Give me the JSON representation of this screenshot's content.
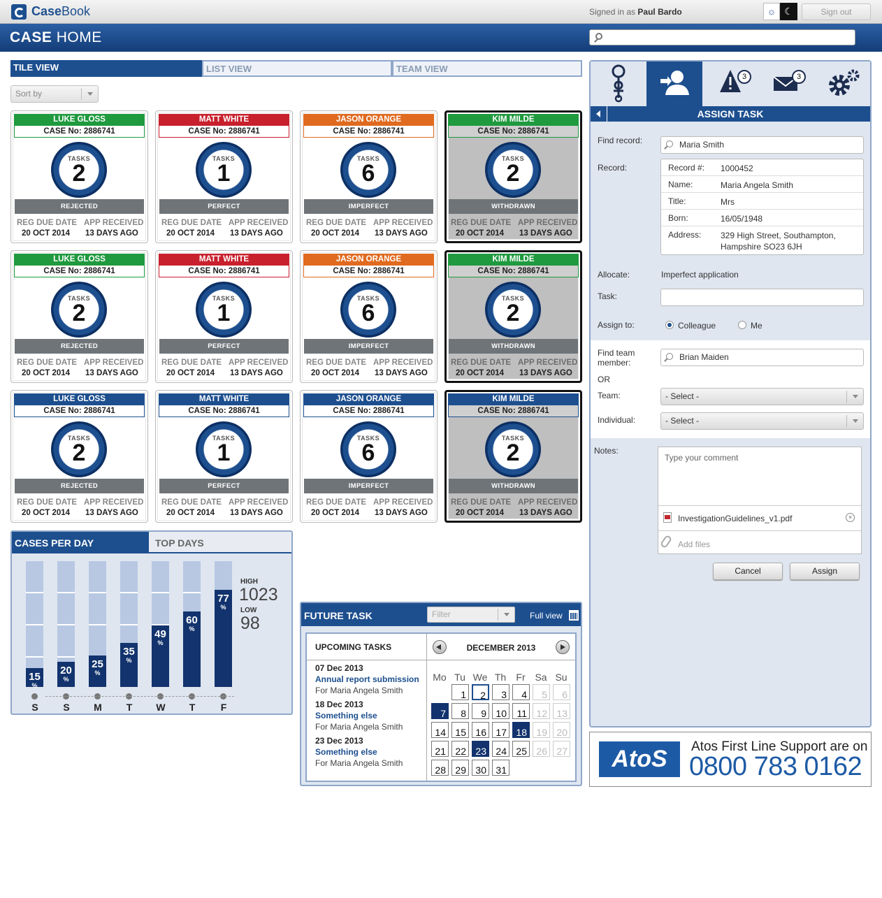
{
  "app": {
    "brand_bold": "Case",
    "brand_rest": "Book",
    "signed_in_prefix": "Signed in as",
    "user": "Paul Bardo",
    "sign_out": "Sign out",
    "light_icon": "sun-icon",
    "dark_icon": "moon-icon"
  },
  "header": {
    "title_bold": "CASE",
    "title_rest": "HOME",
    "search_placeholder": ""
  },
  "view_tabs": [
    "TILE VIEW",
    "LIST VIEW",
    "TEAM VIEW"
  ],
  "sort_by": "Sort by",
  "tile_labels": {
    "tasks": "TASKS",
    "reg_due": "REG DUE DATE",
    "app_received": "APP RECEIVED"
  },
  "colors": {
    "green": "#1f9a3e",
    "red": "#c8202d",
    "orange": "#e06a1f",
    "blue": "#1d4f8f",
    "navy": "#12336d"
  },
  "tiles": [
    {
      "name": "LUKE GLOSS",
      "case": "CASE No: 2886741",
      "tasks": "2",
      "status": "REJECTED",
      "reg_date": "20 OCT 2014",
      "received": "13 DAYS AGO",
      "color": "green",
      "dark": false
    },
    {
      "name": "MATT WHITE",
      "case": "CASE No: 2886741",
      "tasks": "1",
      "status": "PERFECT",
      "reg_date": "20 OCT 2014",
      "received": "13 DAYS AGO",
      "color": "red",
      "dark": false
    },
    {
      "name": "JASON ORANGE",
      "case": "CASE No: 2886741",
      "tasks": "6",
      "status": "IMPERFECT",
      "reg_date": "20 OCT 2014",
      "received": "13 DAYS AGO",
      "color": "orange",
      "dark": false
    },
    {
      "name": "KIM MILDE",
      "case": "CASE No: 2886741",
      "tasks": "2",
      "status": "WITHDRAWN",
      "reg_date": "20 OCT 2014",
      "received": "13 DAYS AGO",
      "color": "green",
      "dark": true
    },
    {
      "name": "LUKE GLOSS",
      "case": "CASE No: 2886741",
      "tasks": "2",
      "status": "REJECTED",
      "reg_date": "20 OCT 2014",
      "received": "13 DAYS AGO",
      "color": "green",
      "dark": false
    },
    {
      "name": "MATT WHITE",
      "case": "CASE No: 2886741",
      "tasks": "1",
      "status": "PERFECT",
      "reg_date": "20 OCT 2014",
      "received": "13 DAYS AGO",
      "color": "red",
      "dark": false
    },
    {
      "name": "JASON ORANGE",
      "case": "CASE No: 2886741",
      "tasks": "6",
      "status": "IMPERFECT",
      "reg_date": "20 OCT 2014",
      "received": "13 DAYS AGO",
      "color": "orange",
      "dark": false
    },
    {
      "name": "KIM MILDE",
      "case": "CASE No: 2886741",
      "tasks": "2",
      "status": "WITHDRAWN",
      "reg_date": "20 OCT 2014",
      "received": "13 DAYS AGO",
      "color": "green",
      "dark": true
    },
    {
      "name": "LUKE GLOSS",
      "case": "CASE No: 2886741",
      "tasks": "2",
      "status": "REJECTED",
      "reg_date": "20 OCT 2014",
      "received": "13 DAYS AGO",
      "color": "blue",
      "dark": false
    },
    {
      "name": "MATT WHITE",
      "case": "CASE No: 2886741",
      "tasks": "1",
      "status": "PERFECT",
      "reg_date": "20 OCT 2014",
      "received": "13 DAYS AGO",
      "color": "blue",
      "dark": false
    },
    {
      "name": "JASON ORANGE",
      "case": "CASE No: 2886741",
      "tasks": "6",
      "status": "IMPERFECT",
      "reg_date": "20 OCT 2014",
      "received": "13 DAYS AGO",
      "color": "blue",
      "dark": false
    },
    {
      "name": "KIM MILDE",
      "case": "CASE No: 2886741",
      "tasks": "2",
      "status": "WITHDRAWN",
      "reg_date": "20 OCT 2014",
      "received": "13 DAYS AGO",
      "color": "blue",
      "dark": true
    }
  ],
  "cases_per_day": {
    "tabs": [
      "CASES PER DAY",
      "TOP DAYS"
    ],
    "high_label": "HIGH",
    "high_value": "1023",
    "low_label": "LOW",
    "low_value": "98",
    "pct_symbol": "%"
  },
  "chart_data": {
    "type": "bar",
    "categories": [
      "S",
      "S",
      "M",
      "T",
      "W",
      "T",
      "F"
    ],
    "values": [
      15,
      20,
      25,
      35,
      49,
      60,
      77
    ],
    "ylim": [
      0,
      100
    ]
  },
  "future_task": {
    "title": "FUTURE TASK",
    "filter_placeholder": "Filter",
    "full_view": "Full view",
    "upcoming_title": "UPCOMING TASKS",
    "tasks": [
      {
        "date": "07 Dec 2013",
        "title": "Annual report submission",
        "for": "For Maria Angela Smith"
      },
      {
        "date": "18 Dec 2013",
        "title": "Something else",
        "for": "For Maria Angela Smith"
      },
      {
        "date": "23 Dec 2013",
        "title": "Something else",
        "for": "For Maria Angela Smith"
      }
    ],
    "month": "DECEMBER 2013",
    "weekdays": [
      "Mo",
      "Tu",
      "We",
      "Th",
      "Fr",
      "Sa",
      "Su"
    ],
    "weeks": [
      [
        null,
        "1",
        "2",
        "3",
        "4",
        "5",
        "6"
      ],
      [
        "7",
        "8",
        "9",
        "10",
        "11",
        "12",
        "13"
      ],
      [
        "14",
        "15",
        "16",
        "17",
        "18",
        "19",
        "20"
      ],
      [
        "21",
        "22",
        "23",
        "24",
        "25",
        "26",
        "27"
      ],
      [
        "28",
        "29",
        "30",
        "31",
        null,
        null,
        null
      ]
    ],
    "selected_days": [
      "7",
      "18",
      "23"
    ],
    "today": "2"
  },
  "assign": {
    "title": "ASSIGN TASK",
    "tab_icons": [
      "hierarchy-icon",
      "assign-user-icon",
      "alert-icon",
      "mail-icon",
      "settings-icon"
    ],
    "alert_count": "3",
    "mail_count": "3",
    "find_record_label": "Find record:",
    "find_record_value": "Maria Smith",
    "record_label": "Record:",
    "record": [
      {
        "k": "Record #:",
        "v": "1000452"
      },
      {
        "k": "Name:",
        "v": "Maria Angela Smith"
      },
      {
        "k": "Title:",
        "v": "Mrs"
      },
      {
        "k": "Born:",
        "v": "16/05/1948"
      },
      {
        "k": "Address:",
        "v": "329 High Street, Southampton, Hampshire SO23 6JH"
      }
    ],
    "allocate_label": "Allocate:",
    "allocate_value": "Imperfect application",
    "task_label": "Task:",
    "task_value": "",
    "assign_to_label": "Assign to:",
    "opt_colleague": "Colleague",
    "opt_me": "Me",
    "find_team_label": "Find team member:",
    "find_team_value": "Brian Maiden",
    "or_label": "OR",
    "team_label": "Team:",
    "team_value": "- Select -",
    "individual_label": "Individual:",
    "individual_value": "- Select -",
    "notes_label": "Notes:",
    "notes_placeholder": "Type your comment",
    "attachment": "InvestigationGuidelines_v1.pdf",
    "add_files": "Add files",
    "cancel": "Cancel",
    "assign": "Assign"
  },
  "atos": {
    "logo": "AtoS",
    "line": "Atos First Line Support are on",
    "phone": "0800 783 0162"
  }
}
